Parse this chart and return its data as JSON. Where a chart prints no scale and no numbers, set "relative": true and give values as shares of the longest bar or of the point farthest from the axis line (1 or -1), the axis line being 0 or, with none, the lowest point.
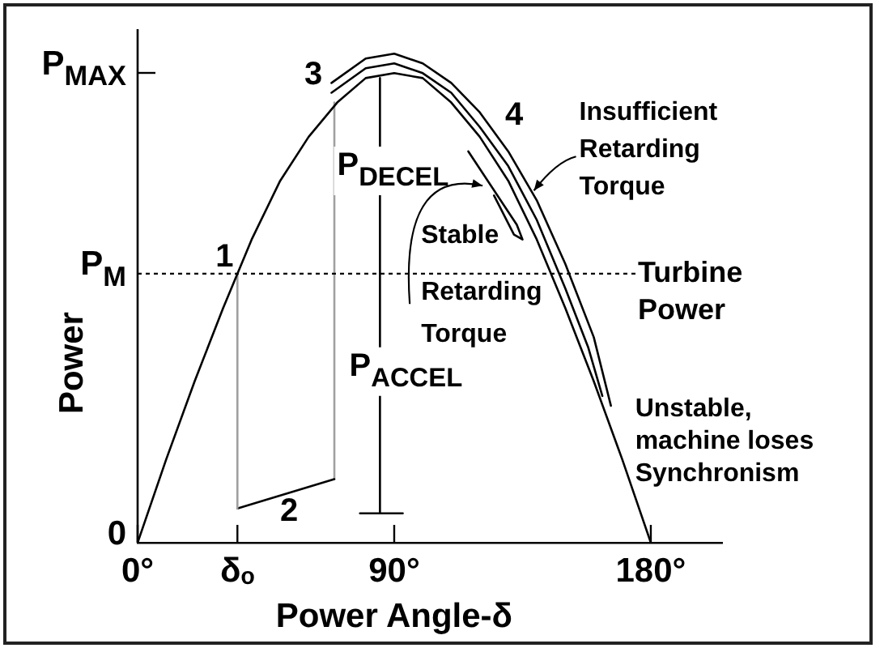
{
  "chart_data": {
    "type": "line",
    "relative": true,
    "xlabel": "Power Angle-δ",
    "ylabel": "Power",
    "xlim": [
      0,
      205
    ],
    "xticks": [
      {
        "value": 0,
        "label": "0°"
      },
      {
        "value": 35,
        "label": "δₒ"
      },
      {
        "value": 90,
        "label": "90°"
      },
      {
        "value": 180,
        "label": "180°"
      }
    ],
    "marker": "none",
    "series": [
      {
        "color": "#000000",
        "x": [
          0,
          10,
          20,
          30,
          40,
          50,
          60,
          70,
          80,
          90,
          100,
          110,
          120,
          130,
          140,
          150,
          160,
          170,
          180
        ],
        "values": [
          0,
          0.17,
          0.33,
          0.48,
          0.62,
          0.74,
          0.83,
          0.9,
          0.95,
          0.96,
          0.95,
          0.9,
          0.83,
          0.74,
          0.62,
          0.48,
          0.33,
          0.17,
          0
        ]
      },
      {
        "color": "#a0a0a0",
        "x": [
          35,
          35
        ],
        "values": [
          0.55,
          0.07
        ]
      },
      {
        "color": "#000000",
        "x": [
          35,
          69
        ],
        "values": [
          0.07,
          0.13
        ]
      },
      {
        "color": "#a0a0a0",
        "x": [
          69,
          69
        ],
        "values": [
          0.13,
          0.9
        ]
      },
      {
        "color": "#000000",
        "x": [
          68,
          80,
          90,
          100,
          110,
          120,
          130,
          140,
          150,
          160,
          166
        ],
        "values": [
          0.94,
          0.99,
          1,
          0.98,
          0.94,
          0.88,
          0.8,
          0.7,
          0.57,
          0.42,
          0.28
        ]
      },
      {
        "color": "#000000",
        "x": [
          68,
          80,
          90,
          100,
          110,
          120,
          130,
          140,
          150,
          158,
          163
        ],
        "values": [
          0.92,
          0.97,
          0.98,
          0.96,
          0.92,
          0.85,
          0.77,
          0.66,
          0.52,
          0.4,
          0.3
        ]
      },
      {
        "color": "#000000",
        "x": [
          116,
          133,
          135,
          132,
          125
        ],
        "values": [
          0.8,
          0.65,
          0.62,
          0.63,
          0.71
        ]
      },
      {
        "color": "#000000",
        "x": [
          85,
          85,
          85
        ],
        "values": [
          0.95,
          0.55,
          0.06
        ]
      },
      {
        "color": "#000000",
        "x": [
          78,
          93
        ],
        "values": [
          0.06,
          0.06
        ]
      }
    ],
    "ref_lines": [
      {
        "axis": "y",
        "value": 0.55,
        "label": "Turbine Power",
        "line_style": "dotted",
        "color": "#000000"
      }
    ],
    "annotations": [
      "P$_{MAX}$",
      {
        "text": "P$_{M}$",
        "x": 0,
        "y": 0.55
      },
      {
        "text": "0",
        "x": 0,
        "y": 0
      },
      {
        "text": "1",
        "x": 35,
        "y": 0.55
      },
      {
        "text": "2",
        "x": 52,
        "y": 0.1
      },
      {
        "text": "3",
        "x": 69,
        "y": 0.9
      },
      {
        "text": "4",
        "x": 123,
        "y": 0.87
      },
      {
        "text": "P$_{DECEL}$",
        "x": 85,
        "y": 0.77
      },
      {
        "text": "P$_{ACCEL}$",
        "x": 85,
        "y": 0.36
      },
      {
        "text": "Stable Retarding Torque",
        "x": 121,
        "y": 0.73
      },
      {
        "text": "Insufficient Retarding Torque",
        "x": 139,
        "y": 0.72
      },
      {
        "text": "Unstable, machine loses Synchronism",
        "x": 166,
        "y": 0.28
      }
    ]
  }
}
